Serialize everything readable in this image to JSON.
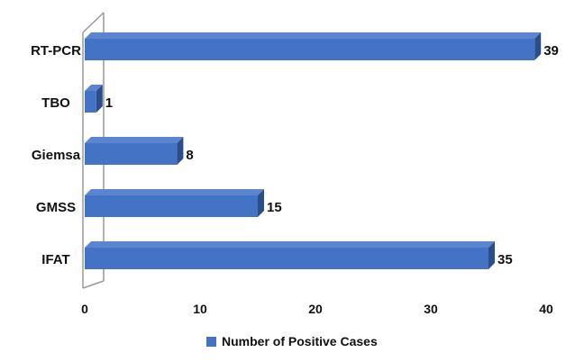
{
  "chart_data": {
    "type": "bar",
    "orientation": "horizontal",
    "style": "3d",
    "categories": [
      "RT-PCR",
      "TBO",
      "Giemsa",
      "GMSS",
      "IFAT"
    ],
    "series": [
      {
        "name": "Number of Positive Cases",
        "values": [
          39,
          1,
          8,
          15,
          35
        ],
        "color": "#4472C4"
      }
    ],
    "xlim": [
      0,
      40
    ],
    "xticks": [
      0,
      10,
      20,
      30,
      40
    ],
    "grid": false,
    "legend": "bottom",
    "title": "",
    "xlabel": "",
    "ylabel": ""
  }
}
